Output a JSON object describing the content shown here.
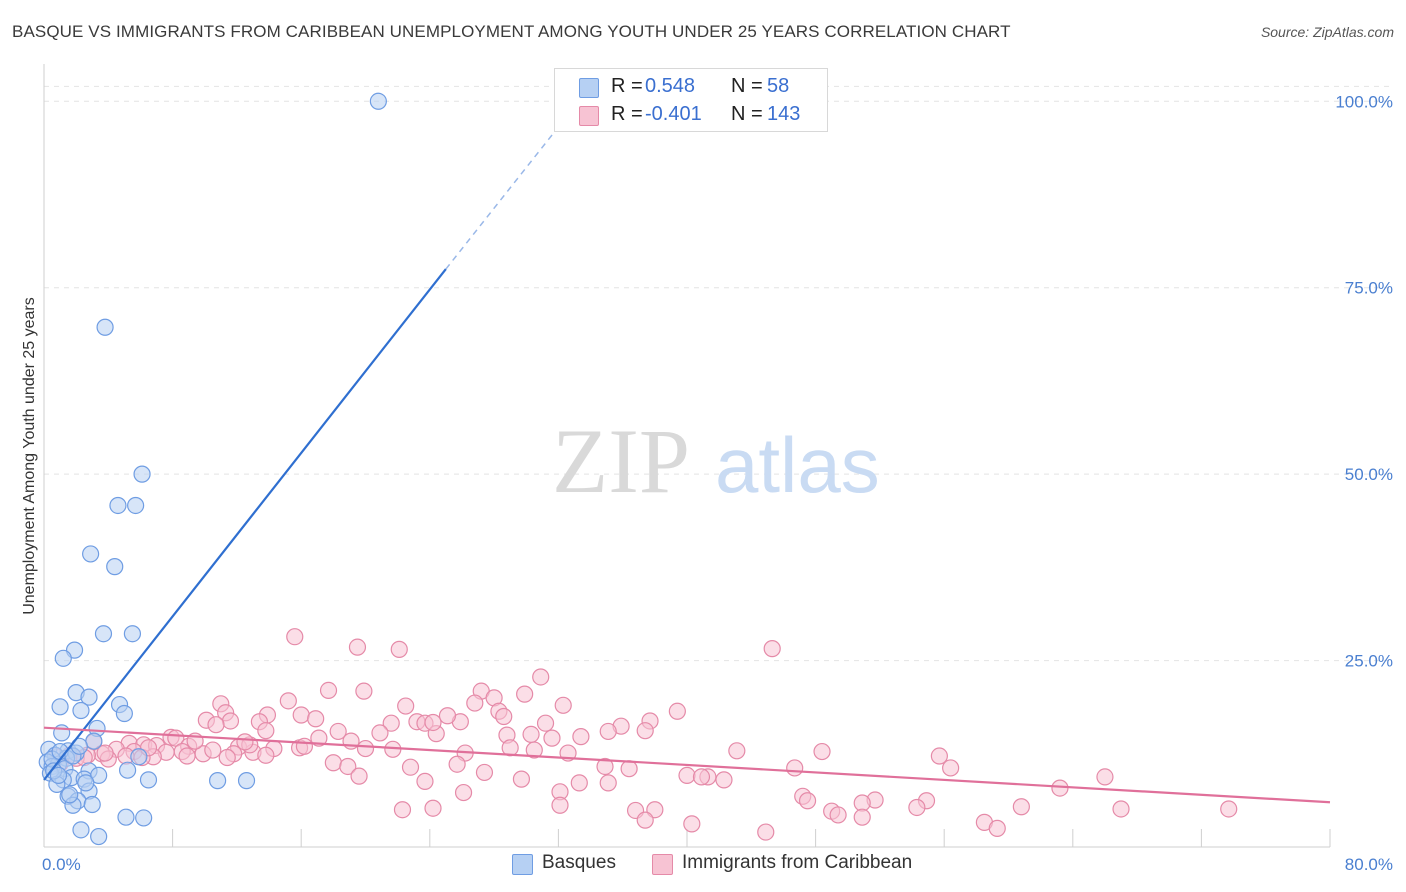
{
  "header": {
    "title": "BASQUE VS IMMIGRANTS FROM CARIBBEAN UNEMPLOYMENT AMONG YOUTH UNDER 25 YEARS CORRELATION CHART",
    "source": "Source: ZipAtlas.com"
  },
  "watermark": {
    "zip": "ZIP",
    "atlas": "atlas"
  },
  "legend": {
    "r_label": "R =",
    "n_label": "N =",
    "rows": [
      {
        "name": "Basques",
        "r": "0.548",
        "n": "58",
        "fill": "#b6d0f3",
        "stroke": "#6f9de3"
      },
      {
        "name": "Immigrants from Caribbean",
        "r": "-0.401",
        "n": "143",
        "fill": "#f7c3d3",
        "stroke": "#e58aa8"
      }
    ]
  },
  "chart_data": {
    "type": "scatter",
    "title": "BASQUE VS IMMIGRANTS FROM CARIBBEAN UNEMPLOYMENT AMONG YOUTH UNDER 25 YEARS CORRELATION CHART",
    "xlabel": "",
    "ylabel": "Unemployment Among Youth under 25 years",
    "xlim": [
      0,
      80
    ],
    "ylim": [
      0,
      105
    ],
    "x_tick_labels": [
      {
        "value": 0,
        "label": "0.0%"
      },
      {
        "value": 80,
        "label": "80.0%"
      }
    ],
    "x_minor_ticks": [
      0,
      8,
      16,
      24,
      32,
      40,
      48,
      56,
      64,
      72,
      80
    ],
    "y_ticks": [
      {
        "value": 25,
        "label": "25.0%"
      },
      {
        "value": 50,
        "label": "50.0%"
      },
      {
        "value": 75,
        "label": "75.0%"
      },
      {
        "value": 100,
        "label": "100.0%"
      }
    ],
    "series": [
      {
        "name": "Basques",
        "color": "#6f9de3",
        "fill": "#b6d0f3",
        "trend": {
          "x0": 0,
          "y0": 9,
          "x1": 25,
          "y1": 77.5,
          "dash_to_x": 34,
          "dash_to_y": 102
        },
        "points": [
          [
            20.8,
            100
          ],
          [
            3.8,
            69.7
          ],
          [
            6.1,
            50.0
          ],
          [
            4.6,
            45.8
          ],
          [
            5.7,
            45.8
          ],
          [
            2.9,
            39.3
          ],
          [
            4.4,
            37.6
          ],
          [
            3.7,
            28.6
          ],
          [
            5.5,
            28.6
          ],
          [
            1.9,
            26.4
          ],
          [
            1.2,
            25.3
          ],
          [
            2.0,
            20.7
          ],
          [
            2.8,
            20.1
          ],
          [
            1.0,
            18.8
          ],
          [
            2.3,
            18.3
          ],
          [
            4.7,
            19.1
          ],
          [
            5.0,
            17.9
          ],
          [
            3.3,
            15.9
          ],
          [
            1.1,
            15.3
          ],
          [
            3.1,
            14.2
          ],
          [
            0.3,
            13.1
          ],
          [
            1.5,
            12.9
          ],
          [
            2.0,
            12.6
          ],
          [
            0.7,
            12.3
          ],
          [
            1.4,
            11.9
          ],
          [
            0.2,
            11.4
          ],
          [
            0.9,
            11.1
          ],
          [
            0.5,
            10.8
          ],
          [
            1.3,
            10.5
          ],
          [
            2.8,
            10.2
          ],
          [
            0.4,
            9.9
          ],
          [
            5.2,
            10.3
          ],
          [
            1.7,
            9.3
          ],
          [
            2.5,
            9.1
          ],
          [
            1.2,
            9.0
          ],
          [
            3.4,
            9.6
          ],
          [
            6.5,
            9.0
          ],
          [
            10.8,
            8.9
          ],
          [
            12.6,
            8.9
          ],
          [
            0.8,
            8.4
          ],
          [
            2.8,
            7.5
          ],
          [
            1.5,
            6.8
          ],
          [
            2.1,
            6.2
          ],
          [
            1.8,
            5.6
          ],
          [
            3.0,
            5.7
          ],
          [
            5.1,
            4.0
          ],
          [
            6.2,
            3.9
          ],
          [
            2.3,
            2.3
          ],
          [
            3.4,
            1.4
          ],
          [
            0.5,
            11.8
          ],
          [
            0.6,
            10.2
          ],
          [
            1.0,
            12.8
          ],
          [
            1.8,
            12.2
          ],
          [
            2.2,
            13.5
          ],
          [
            0.9,
            9.6
          ],
          [
            5.9,
            12.1
          ],
          [
            1.6,
            7.0
          ],
          [
            2.6,
            8.6
          ]
        ]
      },
      {
        "name": "Immigrants from Caribbean",
        "color": "#e58aa8",
        "fill": "#f7c3d3",
        "trend": {
          "x0": 0,
          "y0": 16.0,
          "x1": 80,
          "y1": 6.0
        },
        "points": [
          [
            15.6,
            28.2
          ],
          [
            19.5,
            26.8
          ],
          [
            22.1,
            26.5
          ],
          [
            45.3,
            26.6
          ],
          [
            30.9,
            22.8
          ],
          [
            17.7,
            21.0
          ],
          [
            19.9,
            20.9
          ],
          [
            27.2,
            20.9
          ],
          [
            29.9,
            20.5
          ],
          [
            28.0,
            20.0
          ],
          [
            15.2,
            19.6
          ],
          [
            11.0,
            19.2
          ],
          [
            26.8,
            19.3
          ],
          [
            32.3,
            19.0
          ],
          [
            22.5,
            18.9
          ],
          [
            11.3,
            18.0
          ],
          [
            13.9,
            17.7
          ],
          [
            16.0,
            17.7
          ],
          [
            16.9,
            17.2
          ],
          [
            28.3,
            18.2
          ],
          [
            39.4,
            18.2
          ],
          [
            10.1,
            17.0
          ],
          [
            11.6,
            16.9
          ],
          [
            10.7,
            16.4
          ],
          [
            13.4,
            16.8
          ],
          [
            21.6,
            16.6
          ],
          [
            23.2,
            16.8
          ],
          [
            23.7,
            16.6
          ],
          [
            25.9,
            16.8
          ],
          [
            35.9,
            16.2
          ],
          [
            37.7,
            16.9
          ],
          [
            37.4,
            15.6
          ],
          [
            35.1,
            15.5
          ],
          [
            13.8,
            15.6
          ],
          [
            18.3,
            15.5
          ],
          [
            20.9,
            15.3
          ],
          [
            24.4,
            15.2
          ],
          [
            28.8,
            15.0
          ],
          [
            30.3,
            15.1
          ],
          [
            33.4,
            14.8
          ],
          [
            7.9,
            14.7
          ],
          [
            8.2,
            14.6
          ],
          [
            17.1,
            14.6
          ],
          [
            19.1,
            14.2
          ],
          [
            3.1,
            14.1
          ],
          [
            5.3,
            13.9
          ],
          [
            6.2,
            13.7
          ],
          [
            7.0,
            13.6
          ],
          [
            9.0,
            13.5
          ],
          [
            12.1,
            13.4
          ],
          [
            14.3,
            13.2
          ],
          [
            15.9,
            13.3
          ],
          [
            20.0,
            13.2
          ],
          [
            21.7,
            13.1
          ],
          [
            29.0,
            13.3
          ],
          [
            30.5,
            13.0
          ],
          [
            4.5,
            13.1
          ],
          [
            5.6,
            12.8
          ],
          [
            7.6,
            12.7
          ],
          [
            8.6,
            12.8
          ],
          [
            9.9,
            12.5
          ],
          [
            11.8,
            12.5
          ],
          [
            13.0,
            12.7
          ],
          [
            26.2,
            12.6
          ],
          [
            32.6,
            12.6
          ],
          [
            43.1,
            12.9
          ],
          [
            48.4,
            12.8
          ],
          [
            3.6,
            12.5
          ],
          [
            5.1,
            12.2
          ],
          [
            6.8,
            12.1
          ],
          [
            8.9,
            12.2
          ],
          [
            11.4,
            12.0
          ],
          [
            13.8,
            12.3
          ],
          [
            2.7,
            12.3
          ],
          [
            1.6,
            12.3
          ],
          [
            2.0,
            11.9
          ],
          [
            0.8,
            12.1
          ],
          [
            4.0,
            11.8
          ],
          [
            6.1,
            12.0
          ],
          [
            1.0,
            11.2
          ],
          [
            18.0,
            11.3
          ],
          [
            18.9,
            10.8
          ],
          [
            22.8,
            10.7
          ],
          [
            25.7,
            11.1
          ],
          [
            34.9,
            10.8
          ],
          [
            36.4,
            10.5
          ],
          [
            46.7,
            10.6
          ],
          [
            56.4,
            10.6
          ],
          [
            27.4,
            10.0
          ],
          [
            40.0,
            9.6
          ],
          [
            41.3,
            9.4
          ],
          [
            40.9,
            9.4
          ],
          [
            42.3,
            9.0
          ],
          [
            29.7,
            9.1
          ],
          [
            19.6,
            9.5
          ],
          [
            35.1,
            8.6
          ],
          [
            33.3,
            8.6
          ],
          [
            23.7,
            8.8
          ],
          [
            66.0,
            9.4
          ],
          [
            32.1,
            7.4
          ],
          [
            26.1,
            7.3
          ],
          [
            47.2,
            6.8
          ],
          [
            47.5,
            6.2
          ],
          [
            51.7,
            6.3
          ],
          [
            54.9,
            6.2
          ],
          [
            50.9,
            5.9
          ],
          [
            60.8,
            5.4
          ],
          [
            54.3,
            5.3
          ],
          [
            67.0,
            5.1
          ],
          [
            73.7,
            5.1
          ],
          [
            22.3,
            5.0
          ],
          [
            49.0,
            4.8
          ],
          [
            49.4,
            4.3
          ],
          [
            32.1,
            5.6
          ],
          [
            36.8,
            4.9
          ],
          [
            24.2,
            5.2
          ],
          [
            50.9,
            4.0
          ],
          [
            38.0,
            5.0
          ],
          [
            37.4,
            3.6
          ],
          [
            40.3,
            3.1
          ],
          [
            58.5,
            3.3
          ],
          [
            59.3,
            2.5
          ],
          [
            44.9,
            2.0
          ],
          [
            55.7,
            12.2
          ],
          [
            63.2,
            7.9
          ],
          [
            10.5,
            13.0
          ],
          [
            12.8,
            13.7
          ],
          [
            16.2,
            13.5
          ],
          [
            2.5,
            12.0
          ],
          [
            3.8,
            12.6
          ],
          [
            6.5,
            13.3
          ],
          [
            9.4,
            14.2
          ],
          [
            12.5,
            14.1
          ],
          [
            31.6,
            14.6
          ],
          [
            31.2,
            16.6
          ],
          [
            25.1,
            17.6
          ],
          [
            24.2,
            16.7
          ],
          [
            28.6,
            17.5
          ]
        ]
      }
    ]
  },
  "bottom_legend": [
    {
      "label": "Basques"
    },
    {
      "label": "Immigrants from Caribbean"
    }
  ]
}
